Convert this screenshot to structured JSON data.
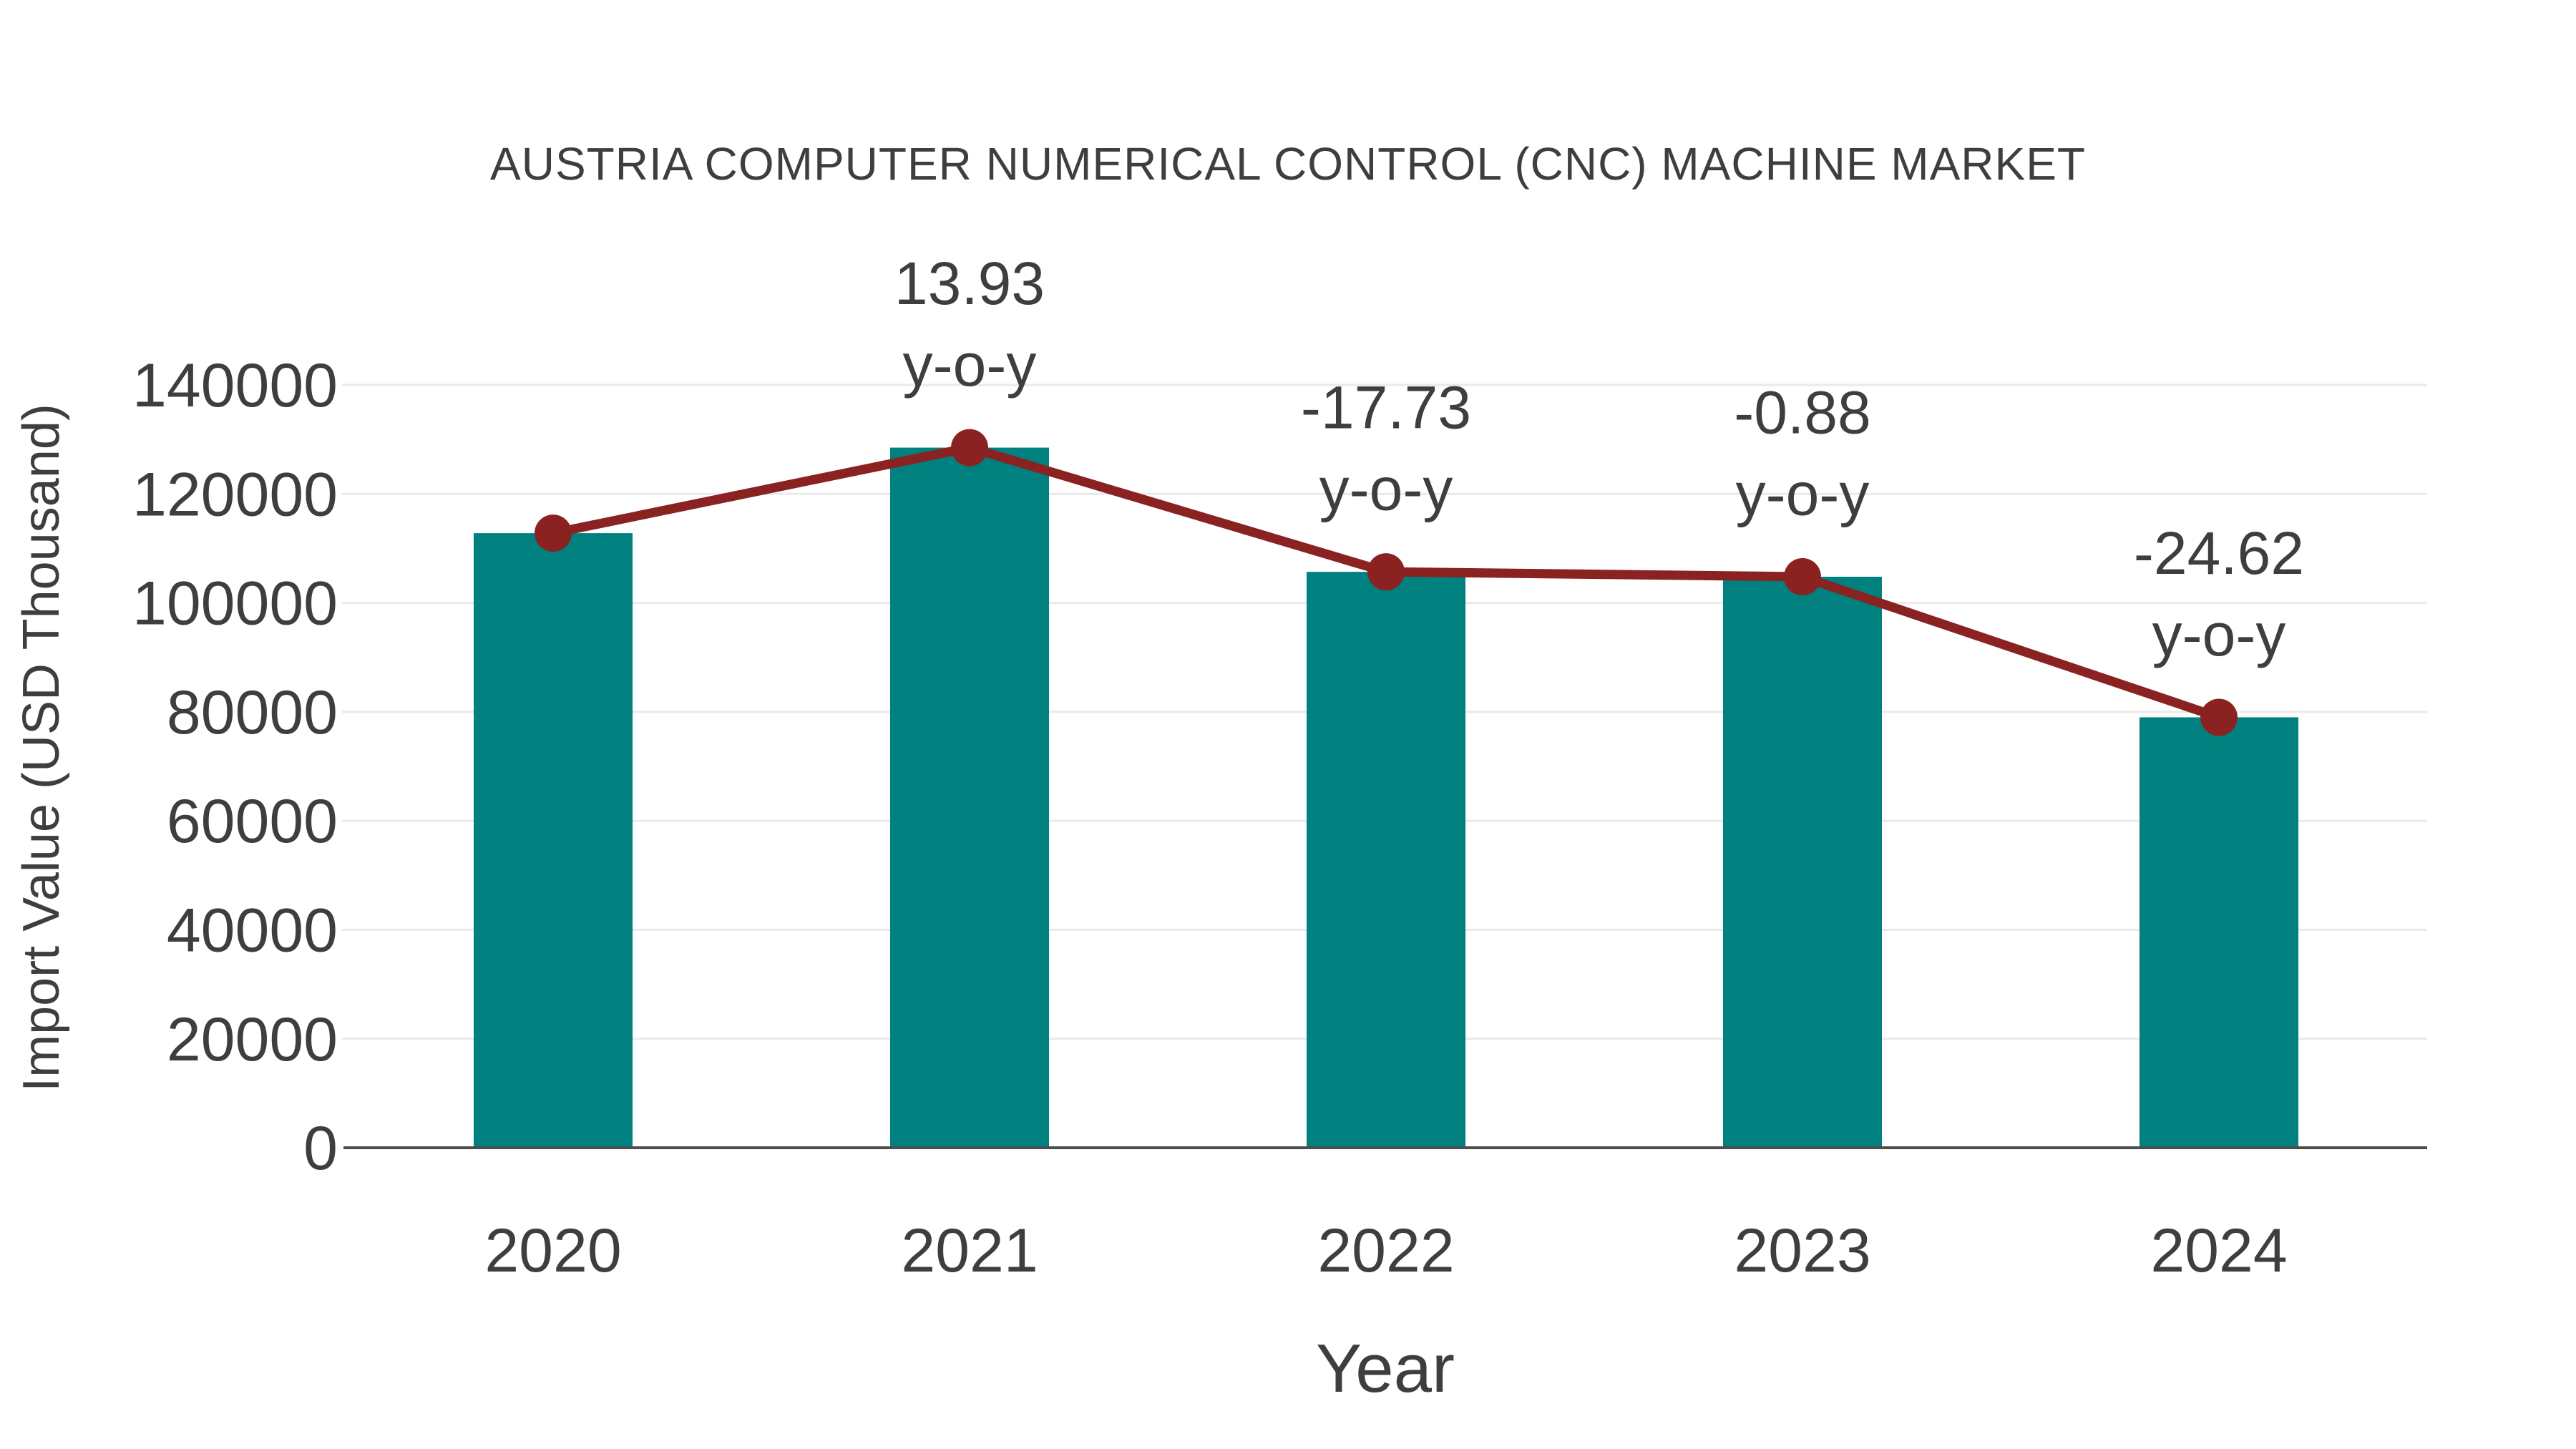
{
  "title": "AUSTRIA COMPUTER NUMERICAL CONTROL (CNC) MACHINE MARKET",
  "chart_data": {
    "type": "bar",
    "categories": [
      "2020",
      "2021",
      "2022",
      "2023",
      "2024"
    ],
    "series": [
      {
        "name": "Import Value",
        "type": "bar",
        "values": [
          112800,
          128500,
          105700,
          104800,
          79000
        ],
        "color": "#00807E"
      },
      {
        "name": "Import Value trend",
        "type": "line",
        "values": [
          112800,
          128500,
          105700,
          104800,
          79000
        ],
        "color": "#8A2222"
      }
    ],
    "annotations": [
      {
        "category": "2021",
        "value": "13.93",
        "suffix": "y-o-y"
      },
      {
        "category": "2022",
        "value": "-17.73",
        "suffix": "y-o-y"
      },
      {
        "category": "2023",
        "value": "-0.88",
        "suffix": "y-o-y"
      },
      {
        "category": "2024",
        "value": "-24.62",
        "suffix": "y-o-y"
      }
    ],
    "title": "AUSTRIA COMPUTER NUMERICAL CONTROL (CNC) MACHINE MARKET",
    "xlabel": "Year",
    "ylabel": "Import Value (USD Thousand)",
    "ylim": [
      0,
      140000
    ],
    "yticks": [
      0,
      20000,
      40000,
      60000,
      80000,
      100000,
      120000,
      140000
    ],
    "grid": true,
    "legend": false,
    "colors": {
      "bar": "#00807E",
      "line": "#8A2222",
      "grid": "#EAEAEA",
      "axis": "#4D4D4D",
      "text": "#3E3E3E",
      "background": "#FFFFFF"
    }
  }
}
